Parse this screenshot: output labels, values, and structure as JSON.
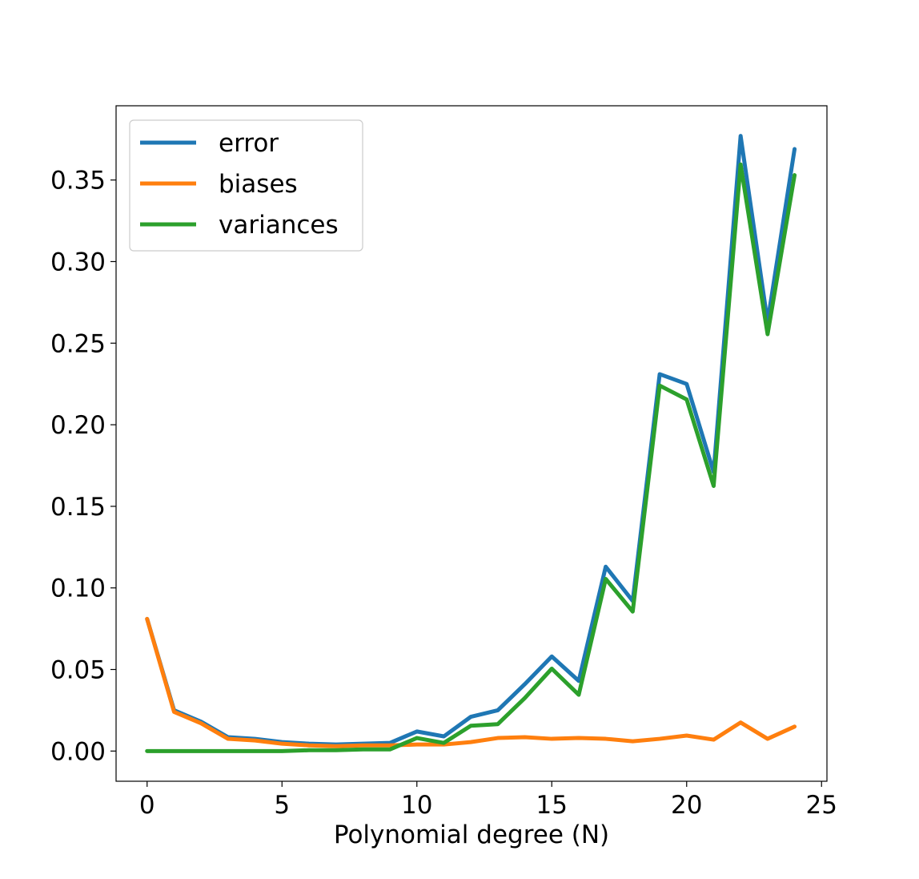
{
  "chart_data": {
    "type": "line",
    "title": "",
    "xlabel": "Polynomial degree (N)",
    "ylabel": "",
    "xlim": [
      -1.15,
      25.2
    ],
    "ylim": [
      -0.0185,
      0.3955
    ],
    "xticks": [
      0,
      5,
      10,
      15,
      20,
      25
    ],
    "xtick_labels": [
      "0",
      "5",
      "10",
      "15",
      "20",
      "25"
    ],
    "yticks": [
      0.0,
      0.05,
      0.1,
      0.15,
      0.2,
      0.25,
      0.3,
      0.35
    ],
    "ytick_labels": [
      "0.00",
      "0.05",
      "0.10",
      "0.15",
      "0.20",
      "0.25",
      "0.30",
      "0.35"
    ],
    "grid": false,
    "legend_position": "top-left",
    "x": [
      0,
      1,
      2,
      3,
      4,
      5,
      6,
      7,
      8,
      9,
      10,
      11,
      12,
      13,
      14,
      15,
      16,
      17,
      18,
      19,
      20,
      21,
      22,
      23,
      24
    ],
    "series": [
      {
        "name": "error",
        "color": "#1f77b4",
        "values": [
          0.081,
          0.025,
          0.018,
          0.0085,
          0.0075,
          0.0055,
          0.0045,
          0.004,
          0.0045,
          0.005,
          0.012,
          0.009,
          0.021,
          0.025,
          0.041,
          0.058,
          0.043,
          0.113,
          0.092,
          0.231,
          0.225,
          0.171,
          0.377,
          0.263,
          0.369
        ]
      },
      {
        "name": "biases",
        "color": "#ff7f0e",
        "values": [
          0.081,
          0.024,
          0.017,
          0.0075,
          0.0065,
          0.0045,
          0.0035,
          0.003,
          0.0035,
          0.0035,
          0.004,
          0.004,
          0.0055,
          0.008,
          0.0085,
          0.0075,
          0.008,
          0.0075,
          0.006,
          0.0075,
          0.0095,
          0.007,
          0.0175,
          0.0075,
          0.015
        ]
      },
      {
        "name": "variances",
        "color": "#2ca02c",
        "values": [
          0.0,
          0.0,
          0.0,
          0.0,
          0.0,
          0.0,
          0.0005,
          0.0005,
          0.001,
          0.001,
          0.008,
          0.005,
          0.0155,
          0.0165,
          0.0325,
          0.0505,
          0.0345,
          0.1055,
          0.0855,
          0.224,
          0.2155,
          0.1625,
          0.3595,
          0.2555,
          0.353
        ]
      }
    ]
  }
}
